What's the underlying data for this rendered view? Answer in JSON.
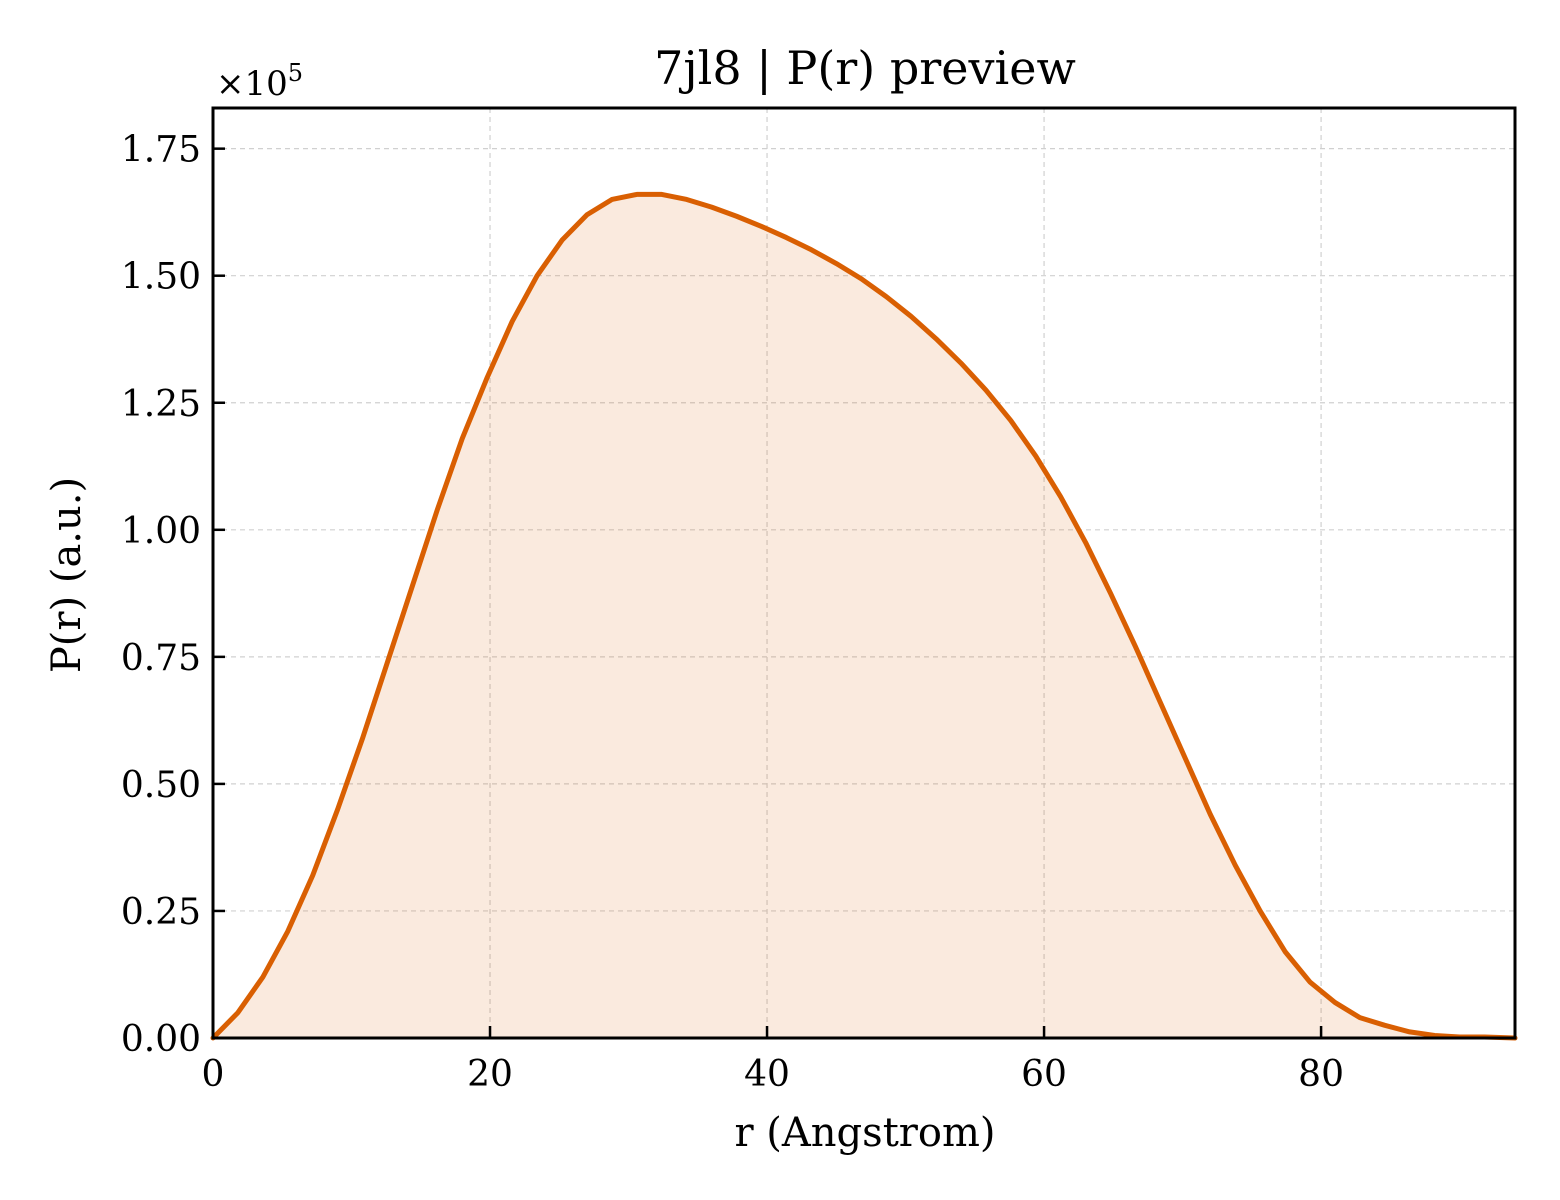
{
  "chart_data": {
    "type": "area",
    "title": "7jl8 | P(r) preview",
    "xlabel": "r (Angstrom)",
    "ylabel": "P(r) (a.u.)",
    "y_offset_label": "×10",
    "y_offset_exponent": "5",
    "xlim": [
      0,
      94
    ],
    "ylim": [
      0,
      1.83
    ],
    "y_scale_factor": 100000,
    "x_ticks": [
      0,
      20,
      40,
      60,
      80
    ],
    "x_tick_labels": [
      "0",
      "20",
      "40",
      "60",
      "80"
    ],
    "y_ticks": [
      0,
      0.25,
      0.5,
      0.75,
      1.0,
      1.25,
      1.5,
      1.75
    ],
    "y_tick_labels": [
      "0.00",
      "0.25",
      "0.50",
      "0.75",
      "1.00",
      "1.25",
      "1.50",
      "1.75"
    ],
    "grid": true,
    "grid_style": "dashed",
    "line_color": "#d95f02",
    "fill_color": "#d95f02",
    "fill_opacity": 0.13,
    "series": [
      {
        "x": [
          0,
          1.8,
          3.6,
          5.4,
          7.2,
          9.0,
          10.8,
          12.6,
          14.4,
          16.2,
          18.0,
          19.8,
          21.6,
          23.4,
          25.2,
          27.0,
          28.8,
          30.6,
          32.4,
          34.2,
          36.0,
          37.8,
          39.6,
          41.4,
          43.2,
          45.0,
          46.8,
          48.6,
          50.4,
          52.2,
          54.0,
          55.8,
          57.6,
          59.4,
          61.2,
          63.0,
          64.8,
          66.6,
          68.4,
          70.2,
          72.0,
          73.8,
          75.6,
          77.4,
          79.2,
          81.0,
          82.8,
          84.6,
          86.4,
          88.2,
          90.0,
          91.8,
          94.0
        ],
        "y": [
          0.0,
          0.05,
          0.12,
          0.21,
          0.32,
          0.45,
          0.59,
          0.74,
          0.89,
          1.04,
          1.18,
          1.3,
          1.41,
          1.5,
          1.57,
          1.62,
          1.65,
          1.66,
          1.66,
          1.65,
          1.635,
          1.617,
          1.597,
          1.575,
          1.551,
          1.524,
          1.494,
          1.459,
          1.42,
          1.376,
          1.328,
          1.275,
          1.215,
          1.145,
          1.065,
          0.975,
          0.875,
          0.77,
          0.66,
          0.55,
          0.44,
          0.34,
          0.25,
          0.17,
          0.11,
          0.07,
          0.04,
          0.025,
          0.012,
          0.005,
          0.002,
          0.002,
          0.0
        ]
      }
    ]
  }
}
